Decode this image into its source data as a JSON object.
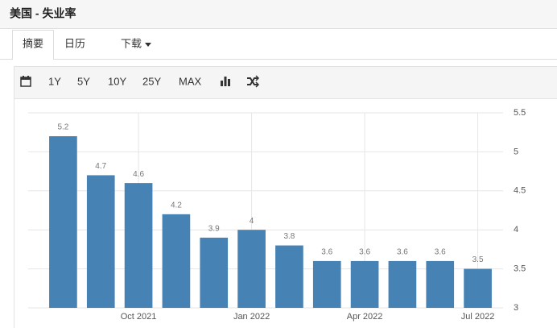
{
  "header": {
    "title": "美国 - 失业率"
  },
  "tabs": [
    "摘要",
    "日历",
    "下载"
  ],
  "toolbar": [
    "1Y",
    "5Y",
    "10Y",
    "25Y",
    "MAX"
  ],
  "chart_data": {
    "type": "bar",
    "categories": [
      null,
      null,
      "Oct 2021",
      null,
      null,
      "Jan 2022",
      null,
      null,
      "Apr 2022",
      null,
      null,
      "Jul 2022"
    ],
    "values": [
      5.2,
      4.7,
      4.6,
      4.2,
      3.9,
      4,
      3.8,
      3.6,
      3.6,
      3.6,
      3.6,
      3.5
    ],
    "color": "#4682b4",
    "ylim": [
      3,
      5.5
    ],
    "yticks": [
      3,
      3.5,
      4,
      4.5,
      5,
      5.5
    ],
    "grid": true
  }
}
